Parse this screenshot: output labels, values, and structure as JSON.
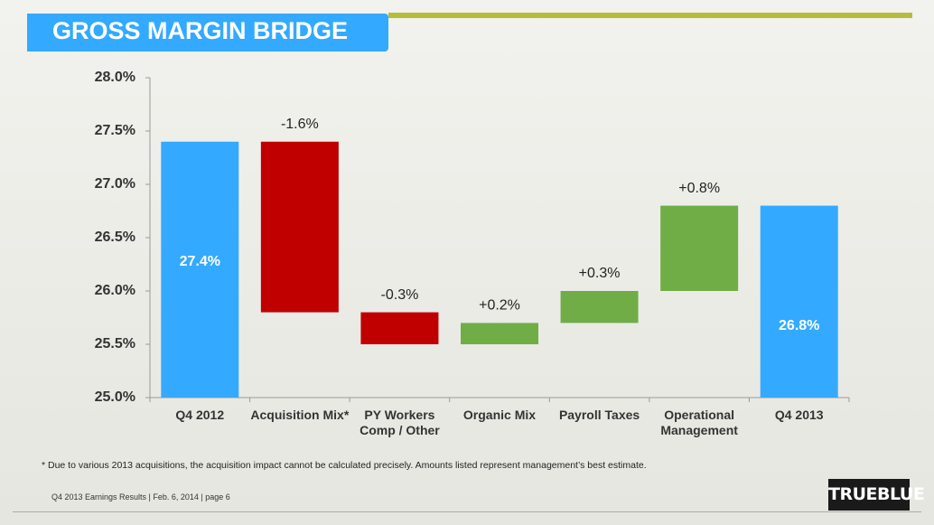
{
  "header": {
    "title": "GROSS MARGIN BRIDGE"
  },
  "chart_data": {
    "type": "waterfall",
    "categories": [
      "Q4 2012",
      "Acquisition Mix*",
      "PY Workers Comp / Other",
      "Organic Mix",
      "Payroll Taxes",
      "Operational Management",
      "Q4 2013"
    ],
    "values": [
      27.4,
      -1.6,
      -0.3,
      0.2,
      0.3,
      0.8,
      26.8
    ],
    "value_labels": [
      "27.4%",
      "-1.6%",
      "-0.3%",
      "+0.2%",
      "+0.3%",
      "+0.8%",
      "26.8%"
    ],
    "measure": [
      "absolute",
      "relative",
      "relative",
      "relative",
      "relative",
      "relative",
      "absolute"
    ],
    "total_color": "#33aaff",
    "increase_color": "#70ad47",
    "decrease_color": "#c00000",
    "ylim": [
      25.0,
      28.0
    ],
    "yticks": [
      {
        "value": 25.0,
        "label": "25.0%"
      },
      {
        "value": 25.5,
        "label": "25.5%"
      },
      {
        "value": 26.0,
        "label": "26.0%"
      },
      {
        "value": 26.5,
        "label": "26.5%"
      },
      {
        "value": 27.0,
        "label": "27.0%"
      },
      {
        "value": 27.5,
        "label": "27.5%"
      },
      {
        "value": 28.0,
        "label": "28.0%"
      }
    ],
    "grid": false
  },
  "footnote": "* Due to various 2013 acquisitions, the acquisition impact cannot be calculated precisely.  Amounts listed represent management’s best estimate.",
  "footer": "Q4 2013 Earnings Results | Feb. 6, 2014  | page 6",
  "logo": "TRUEBLUE"
}
